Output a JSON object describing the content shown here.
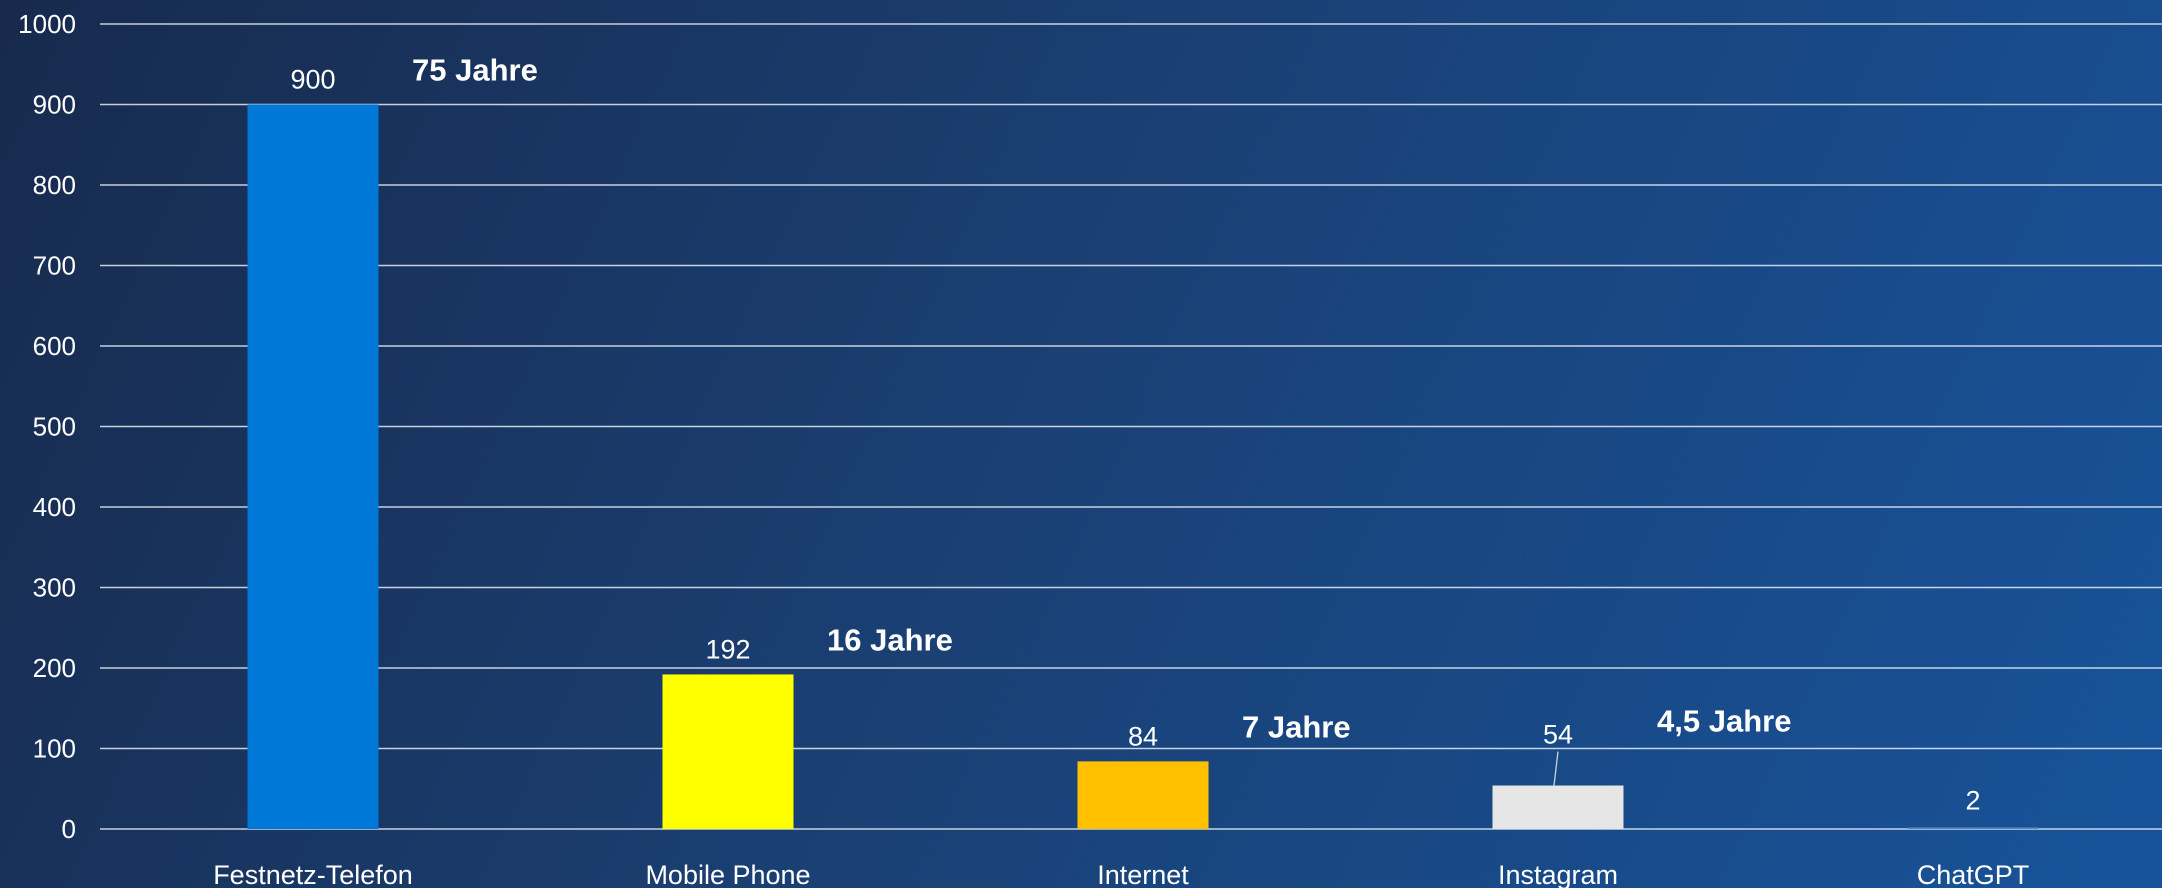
{
  "chart_data": {
    "type": "bar",
    "title": "",
    "xlabel": "",
    "ylabel": "",
    "ylim": [
      0,
      1000
    ],
    "yticks": [
      0,
      100,
      200,
      300,
      400,
      500,
      600,
      700,
      800,
      900,
      1000
    ],
    "grid": true,
    "legend": "none",
    "categories": [
      "Festnetz-Telefon",
      "Mobile Phone",
      "Internet",
      "Instagram",
      "ChatGPT"
    ],
    "values": [
      900,
      192,
      84,
      54,
      2
    ],
    "value_labels": [
      "900",
      "192",
      "84",
      "54",
      "2"
    ],
    "annotations": [
      "75 Jahre",
      "16 Jahre",
      "7 Jahre",
      "4,5 Jahre",
      ""
    ],
    "colors": [
      "#0078d7",
      "#ffff00",
      "#ffc000",
      "#e6e6e6",
      "#5a84c0"
    ],
    "text_color": "#ffffff",
    "grid_color": "#e6ecf5"
  }
}
